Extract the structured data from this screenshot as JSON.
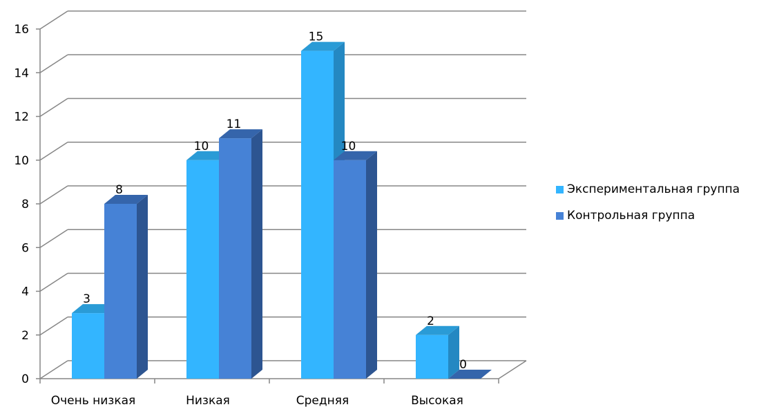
{
  "chart_data": {
    "type": "bar",
    "title": "",
    "xlabel": "",
    "ylabel": "",
    "ylim": [
      0,
      16
    ],
    "yticks": [
      "0",
      "2",
      "4",
      "6",
      "8",
      "10",
      "12",
      "14",
      "16"
    ],
    "categories": [
      "Очень низкая",
      "Низкая",
      "Средняя",
      "Высокая"
    ],
    "series": [
      {
        "name": "Экспериментальная группа",
        "values": [
          3,
          10,
          15,
          2
        ],
        "color": "#33b5ff",
        "side_color": "#2488c2",
        "top_color": "#2a9bd6"
      },
      {
        "name": "Контрольная группа",
        "values": [
          8,
          11,
          10,
          0
        ],
        "color": "#4682d6",
        "side_color": "#2d5591",
        "top_color": "#3565ab"
      }
    ],
    "grid": true,
    "legend_position": "right"
  }
}
